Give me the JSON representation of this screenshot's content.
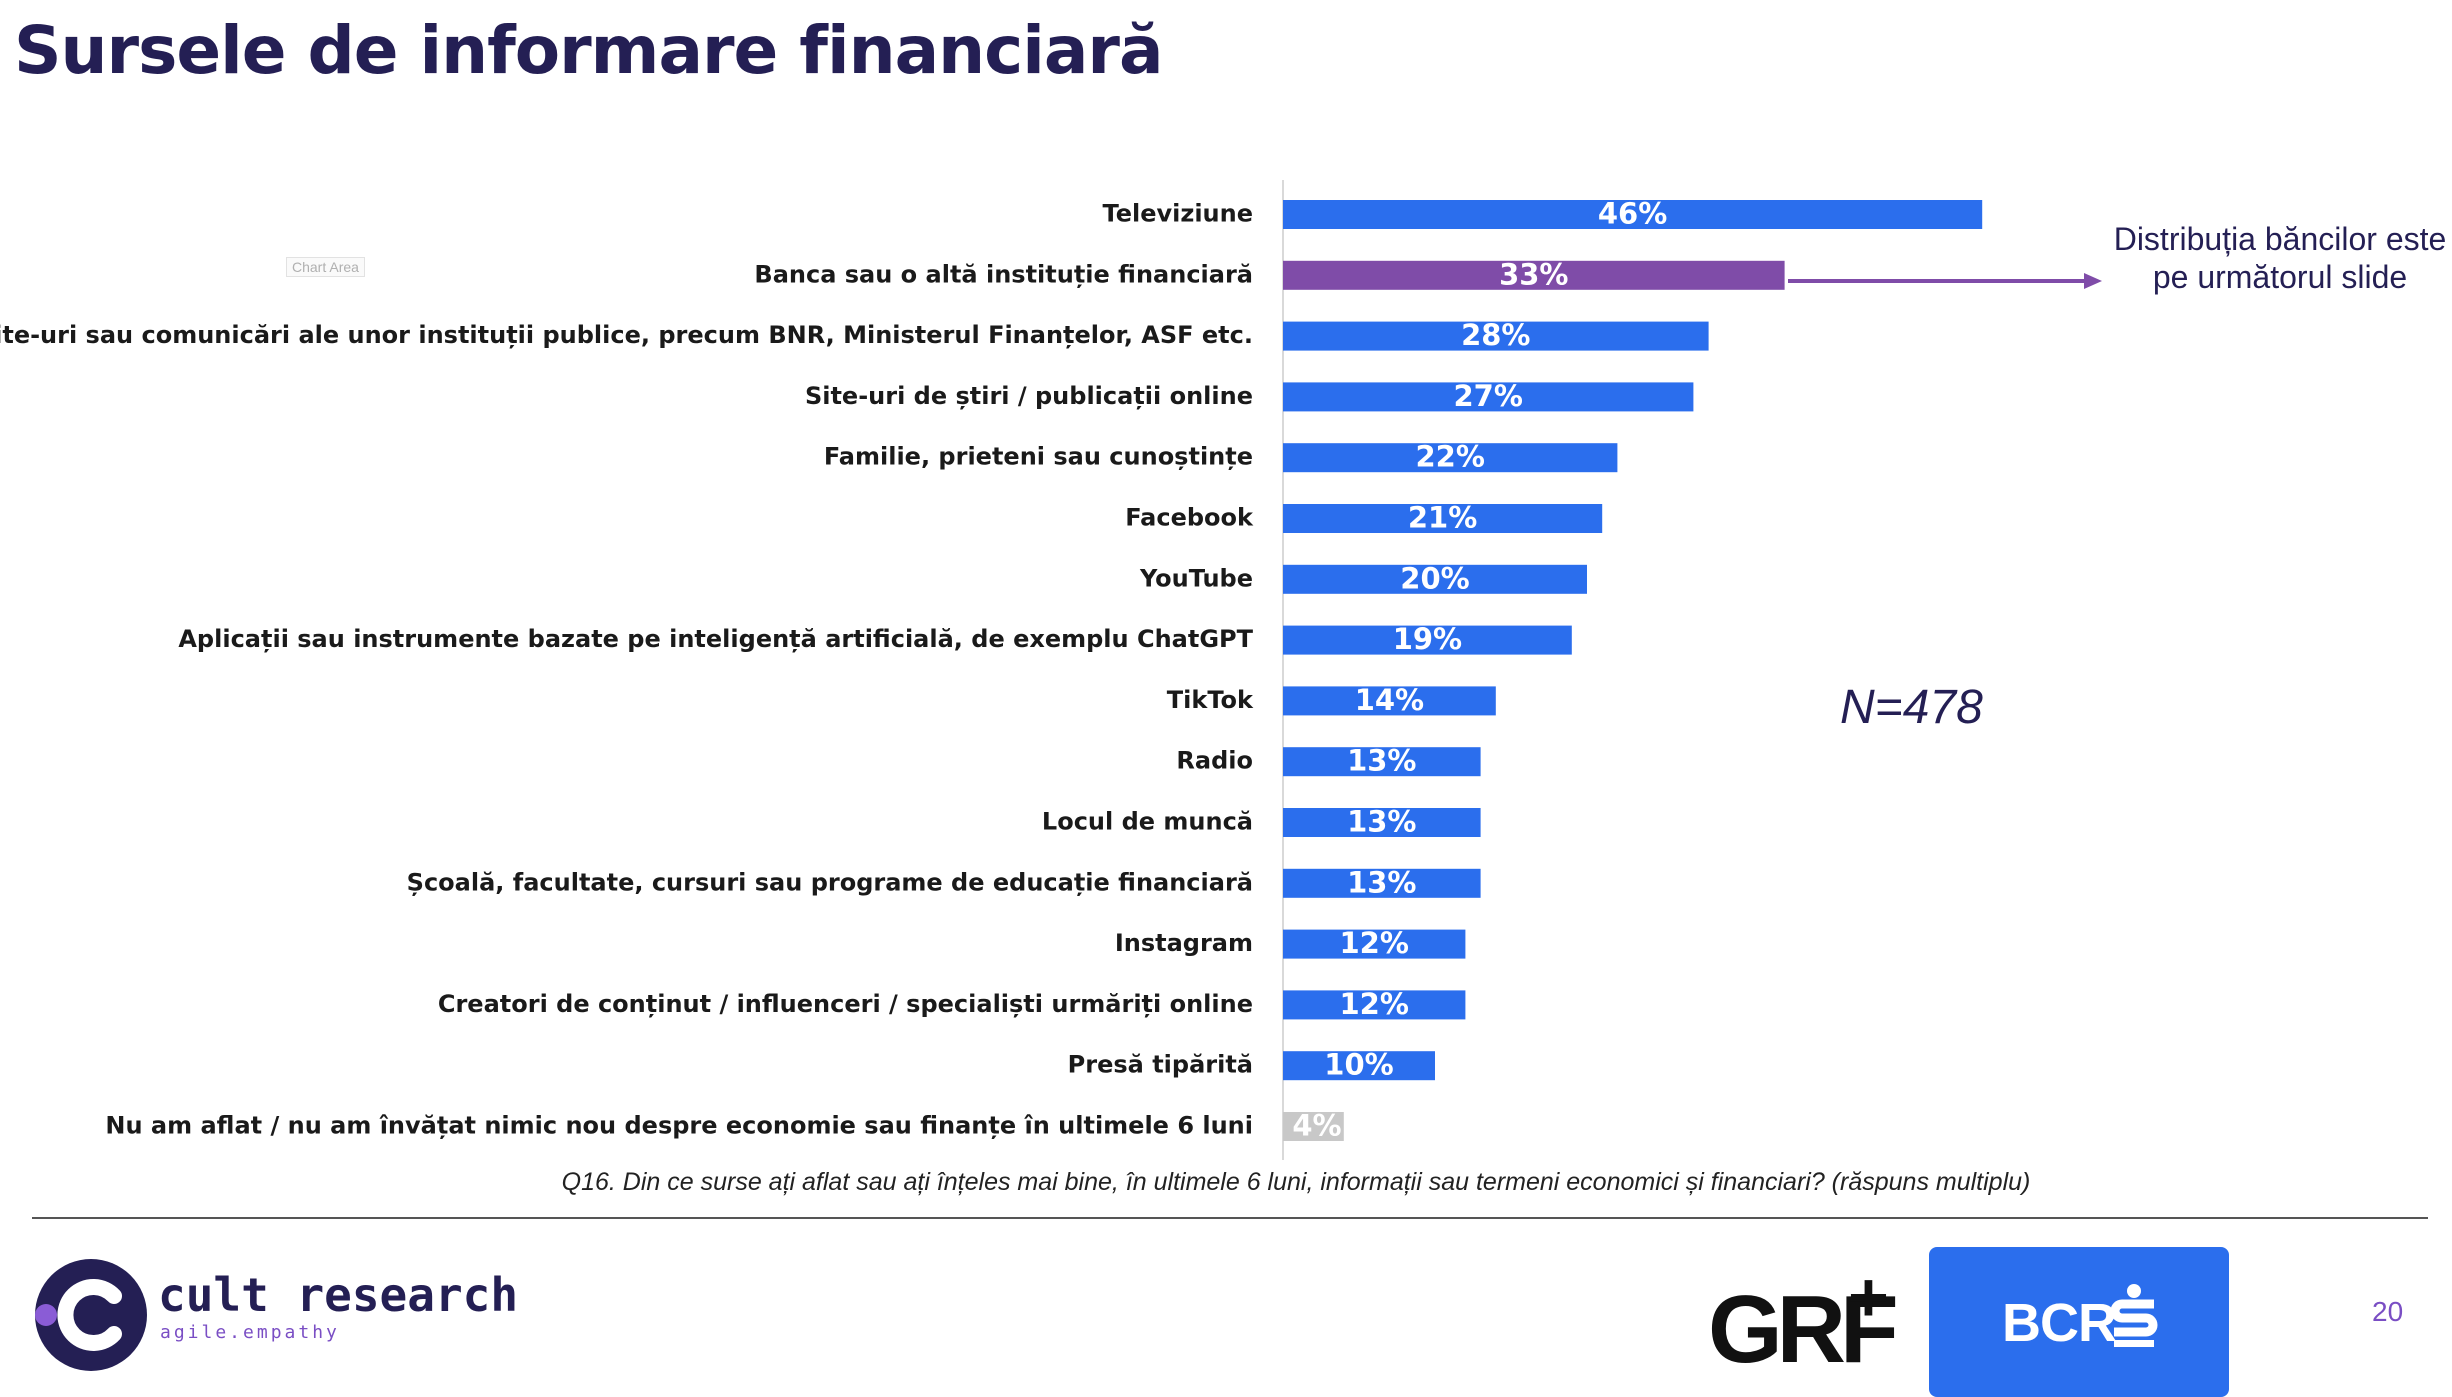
{
  "page": {
    "title": "Sursele de informare financiară",
    "chart_area_tag": "Chart Area",
    "annotation": "Distribuția băncilor este pe următorul slide",
    "sample_size": "N=478",
    "question": "Q16. Din ce surse ați aflat sau ați înțeles mai bine, în ultimele 6 luni, informații sau termeni economici și financiari? (răspuns multiplu)",
    "page_number": "20"
  },
  "footer": {
    "brand_name": "cult research",
    "brand_tagline": "agile.empathy",
    "partner_logo_text": "GRF",
    "partner_logo_plus": "+",
    "bank_logo_text": "BCR"
  },
  "colors": {
    "bar_default": "#2b6eed",
    "bar_highlight": "#7f4ca8",
    "bar_muted": "#c8c8c8",
    "title": "#241f54",
    "accent": "#7a4ec4"
  },
  "chart_data": {
    "type": "bar",
    "orientation": "horizontal",
    "categories": [
      "Televiziune",
      "Banca sau o altă instituție financiară",
      "Site-uri sau comunicări ale unor instituții publice, precum BNR, Ministerul Finanțelor, ASF etc.",
      "Site-uri de știri / publicații online",
      "Familie, prieteni sau cunoștințe",
      "Facebook",
      "YouTube",
      "Aplicații sau instrumente bazate pe inteligență artificială, de exemplu ChatGPT",
      "TikTok",
      "Radio",
      "Locul de muncă",
      "Școală, facultate, cursuri sau programe de educație financiară",
      "Instagram",
      "Creatori de conținut / influenceri / specialiști urmăriți online",
      "Presă tipărită",
      "Nu am aflat / nu am învățat nimic nou despre economie sau finanțe în ultimele 6 luni"
    ],
    "values": [
      46,
      33,
      28,
      27,
      22,
      21,
      20,
      19,
      14,
      13,
      13,
      13,
      12,
      12,
      10,
      4
    ],
    "value_labels": [
      "46%",
      "33%",
      "28%",
      "27%",
      "22%",
      "21%",
      "20%",
      "19%",
      "14%",
      "13%",
      "13%",
      "13%",
      "12%",
      "12%",
      "10%",
      "4%"
    ],
    "highlight_index": 1,
    "muted_index": 15,
    "unit": "%",
    "xlim": [
      0,
      100
    ],
    "grid": false,
    "legend": "none"
  }
}
